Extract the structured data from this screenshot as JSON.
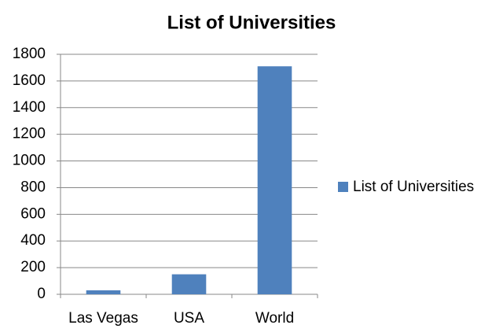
{
  "chart_data": {
    "type": "bar",
    "title": "List of Universities",
    "categories": [
      "Las Vegas",
      "USA",
      "World"
    ],
    "series": [
      {
        "name": "List of Universities",
        "color": "#4f81bd",
        "values": [
          30,
          150,
          1710
        ]
      }
    ],
    "ylim": [
      0,
      1800
    ],
    "yticks": [
      0,
      200,
      400,
      600,
      800,
      1000,
      1200,
      1400,
      1600,
      1800
    ],
    "grid": true,
    "legend": "right"
  }
}
